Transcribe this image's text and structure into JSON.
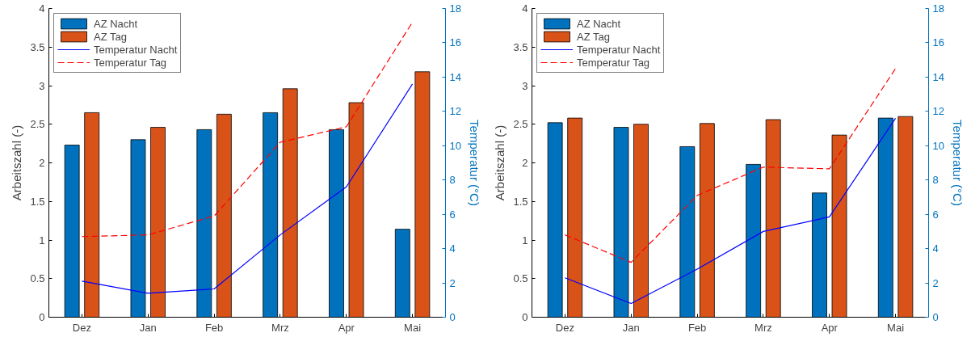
{
  "chart_data": [
    {
      "type": "bar",
      "categories": [
        "Dez",
        "Jan",
        "Feb",
        "Mrz",
        "Apr",
        "Mai"
      ],
      "ylabel": "Arbeitszahl (-)",
      "y2label": "Temperatur (°C)",
      "ylim": [
        0,
        4
      ],
      "yticks": [
        0,
        0.5,
        1,
        1.5,
        2,
        2.5,
        3,
        3.5,
        4
      ],
      "y2lim": [
        0,
        18
      ],
      "y2ticks": [
        0,
        2,
        4,
        6,
        8,
        10,
        12,
        14,
        16,
        18
      ],
      "grid": false,
      "legend": "top left",
      "series": [
        {
          "name": "AZ Nacht",
          "color": "#0072bd",
          "values": [
            2.23,
            2.3,
            2.43,
            2.65,
            2.43,
            1.14
          ]
        },
        {
          "name": "AZ Tag",
          "color": "#d95319",
          "values": [
            2.65,
            2.46,
            2.63,
            2.96,
            2.78,
            3.18
          ]
        },
        {
          "name": "Temperatur Nacht",
          "type": "line",
          "axis": "y2",
          "color": "#0000ff",
          "line_style": "solid",
          "values": [
            2.1,
            1.4,
            1.65,
            4.8,
            7.6,
            13.6
          ]
        },
        {
          "name": "Temperatur Tag",
          "type": "line",
          "axis": "y2",
          "color": "#ff0000",
          "line_style": "dashed",
          "values": [
            4.7,
            4.8,
            5.9,
            10.2,
            11.1,
            17.2
          ]
        }
      ]
    },
    {
      "type": "bar",
      "categories": [
        "Dez",
        "Jan",
        "Feb",
        "Mrz",
        "Apr",
        "Mai"
      ],
      "ylabel": "Arbeitszahl (-)",
      "y2label": "Temperatur (°C)",
      "ylim": [
        0,
        4
      ],
      "yticks": [
        0,
        0.5,
        1,
        1.5,
        2,
        2.5,
        3,
        3.5,
        4
      ],
      "y2lim": [
        0,
        18
      ],
      "y2ticks": [
        0,
        2,
        4,
        6,
        8,
        10,
        12,
        14,
        16,
        18
      ],
      "grid": false,
      "legend": "top left",
      "series": [
        {
          "name": "AZ Nacht",
          "color": "#0072bd",
          "values": [
            2.52,
            2.46,
            2.21,
            1.98,
            1.61,
            2.58
          ]
        },
        {
          "name": "AZ Tag",
          "color": "#d95319",
          "values": [
            2.58,
            2.5,
            2.51,
            2.56,
            2.36,
            2.6
          ]
        },
        {
          "name": "Temperatur Nacht",
          "type": "line",
          "axis": "y2",
          "color": "#0000ff",
          "line_style": "solid",
          "values": [
            2.3,
            0.8,
            2.8,
            5.0,
            5.85,
            11.6
          ]
        },
        {
          "name": "Temperatur Tag",
          "type": "line",
          "axis": "y2",
          "color": "#ff0000",
          "line_style": "dashed",
          "values": [
            4.8,
            3.2,
            7.1,
            8.75,
            8.65,
            14.5
          ]
        }
      ]
    }
  ]
}
